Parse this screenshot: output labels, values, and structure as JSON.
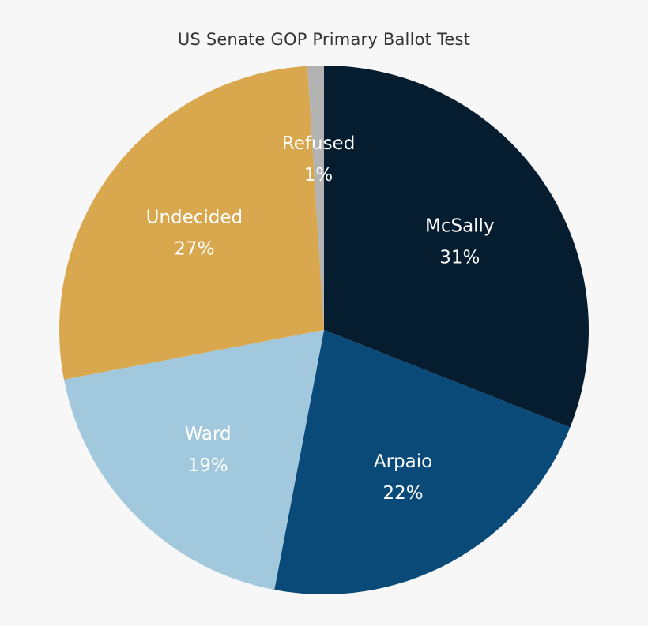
{
  "chart_data": {
    "type": "pie",
    "title": "US Senate GOP Primary Ballot Test",
    "start_angle_deg": 0,
    "direction": "clockwise",
    "slices": [
      {
        "name": "McSally",
        "value": 31,
        "label": "31%",
        "color": "#061c2f"
      },
      {
        "name": "Arpaio",
        "value": 22,
        "label": "22%",
        "color": "#094a79"
      },
      {
        "name": "Ward",
        "value": 19,
        "label": "19%",
        "color": "#a2c8dd"
      },
      {
        "name": "Undecided",
        "value": 27,
        "label": "27%",
        "color": "#d9a74d"
      },
      {
        "name": "Refused",
        "value": 1,
        "label": "1%",
        "color": "#b3b3b3"
      }
    ]
  }
}
